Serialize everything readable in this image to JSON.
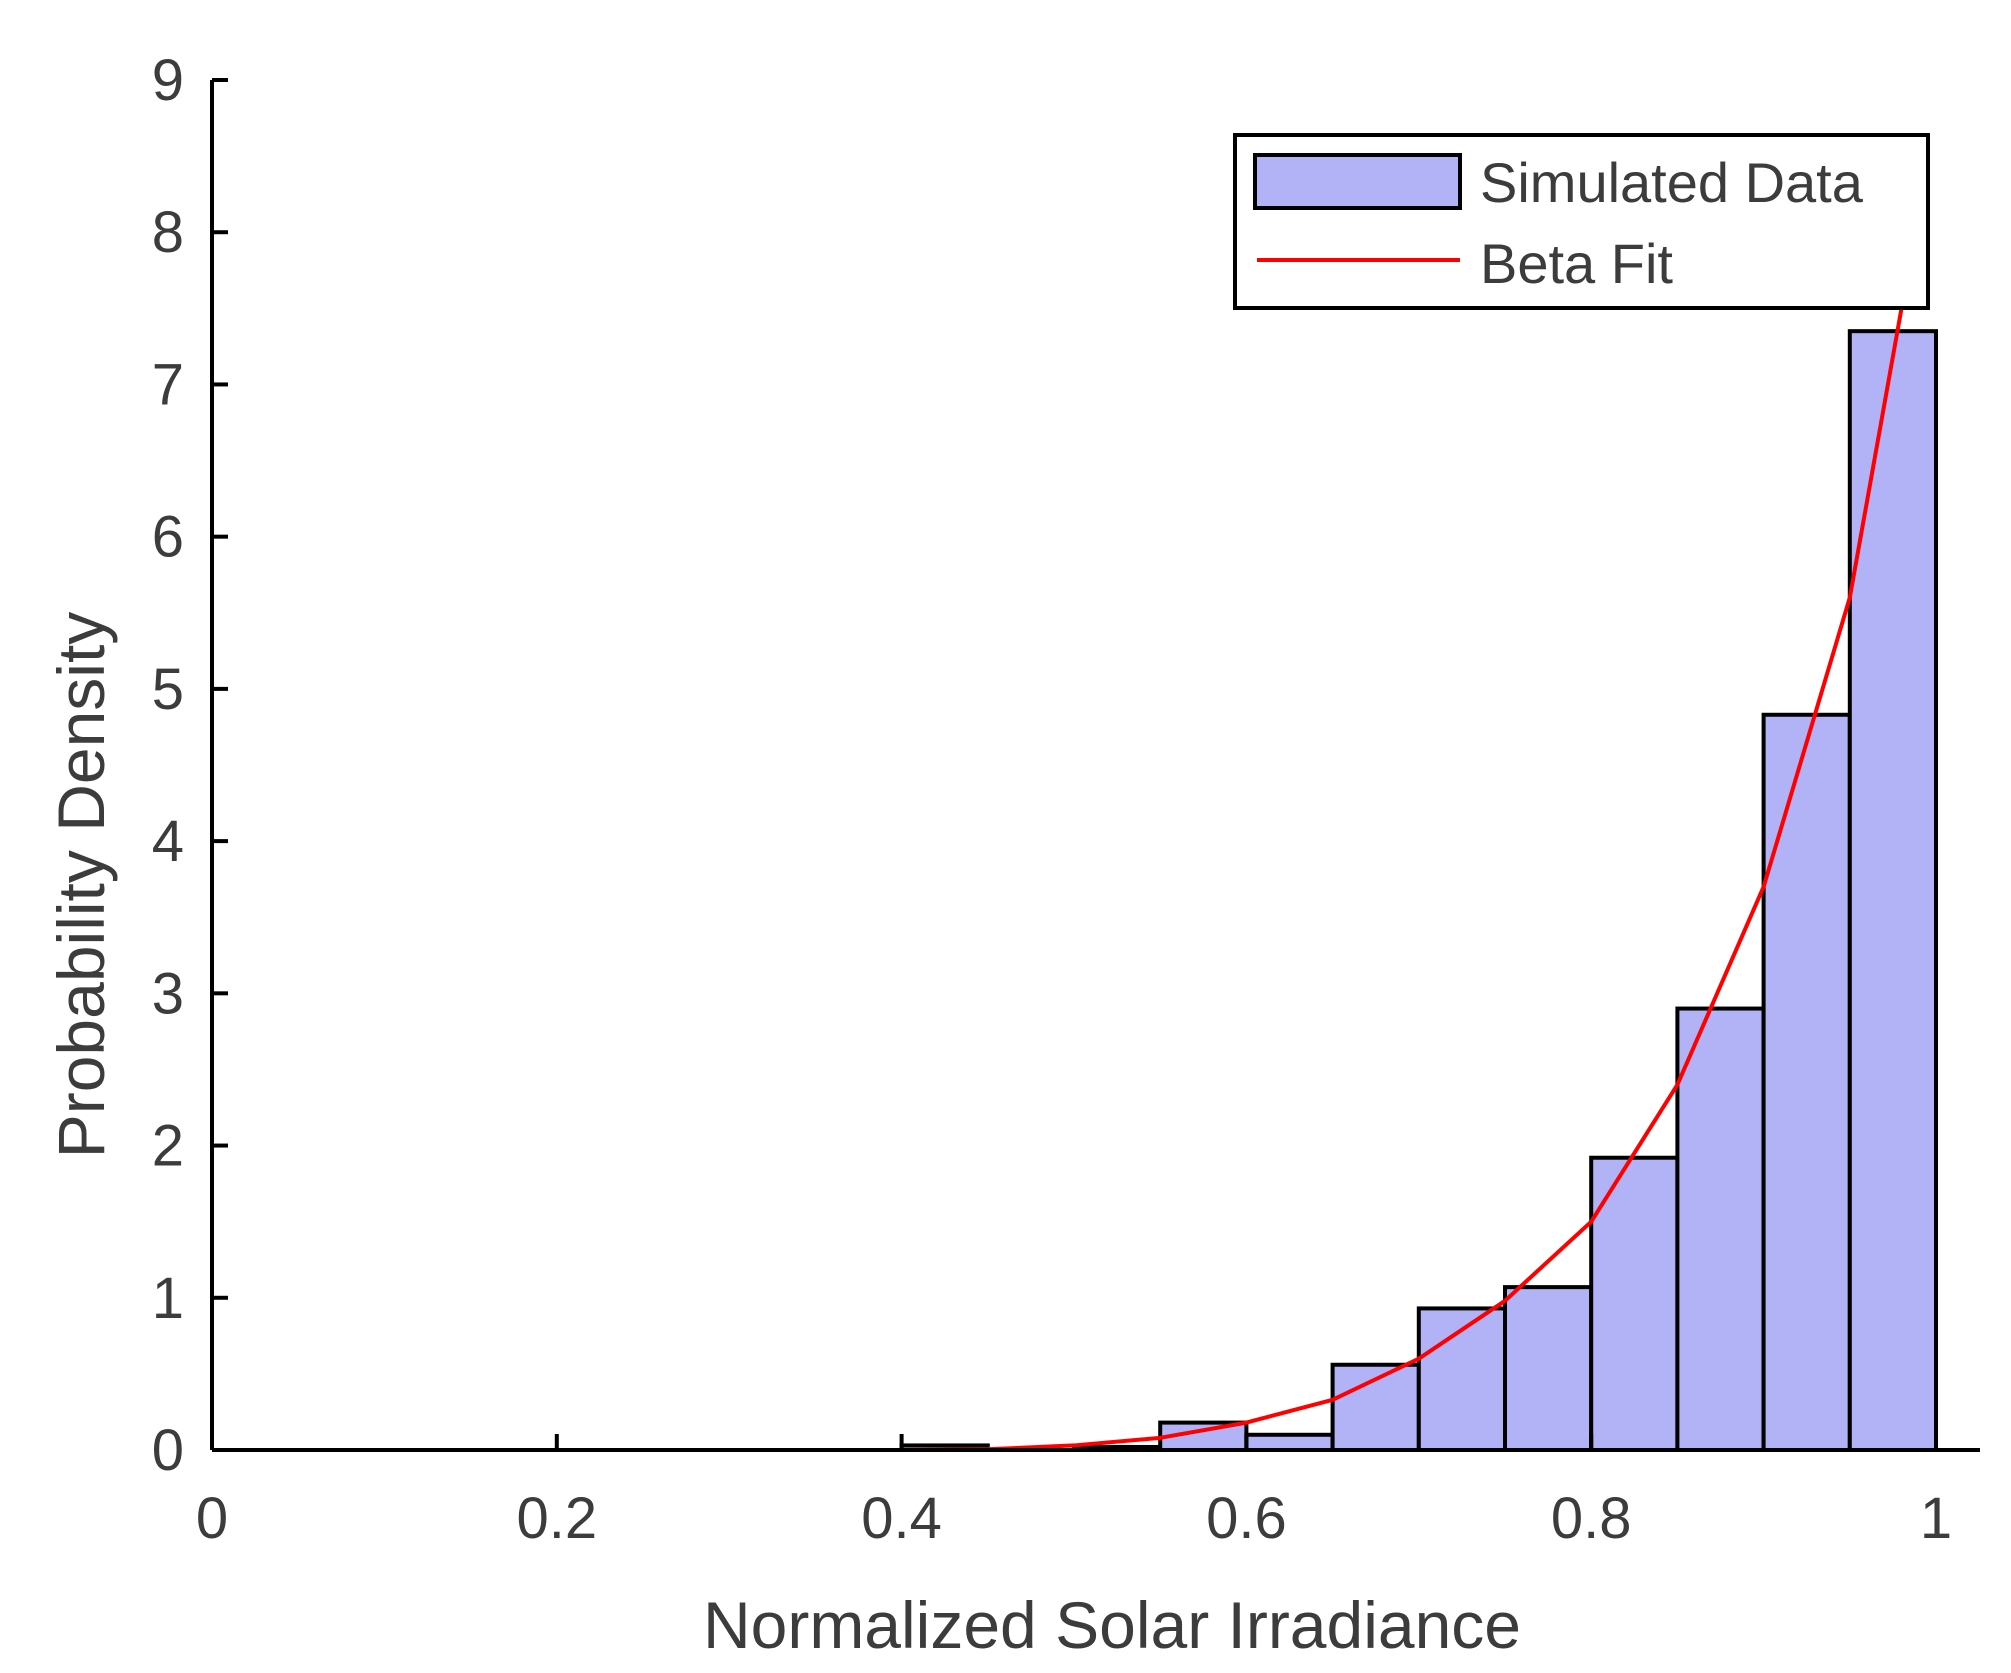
{
  "chart_data": {
    "type": "bar",
    "title": "",
    "xlabel": "Normalized Solar Irradiance",
    "ylabel": "Probability Density",
    "xlim": [
      0,
      1
    ],
    "ylim": [
      0,
      9
    ],
    "xticks": [
      "0",
      "0.2",
      "0.4",
      "0.6",
      "0.8",
      "1"
    ],
    "yticks": [
      "0",
      "1",
      "2",
      "3",
      "4",
      "5",
      "6",
      "7",
      "8",
      "9"
    ],
    "grid": false,
    "legend_position": "top-right",
    "series": [
      {
        "name": "Simulated Data",
        "kind": "histogram",
        "color": "#b2b2f7",
        "edge_color": "#000000",
        "bin_edges": [
          0.4,
          0.45,
          0.5,
          0.55,
          0.6,
          0.65,
          0.7,
          0.75,
          0.8,
          0.85,
          0.9,
          0.95,
          1.0
        ],
        "values": [
          0.03,
          0.0,
          0.02,
          0.18,
          0.1,
          0.56,
          0.93,
          1.07,
          1.92,
          2.9,
          4.83,
          7.35
        ]
      },
      {
        "name": "Beta Fit",
        "kind": "line",
        "color": "#ff0000",
        "x": [
          0,
          0.1,
          0.2,
          0.3,
          0.4,
          0.45,
          0.5,
          0.55,
          0.6,
          0.65,
          0.7,
          0.75,
          0.8,
          0.85,
          0.9,
          0.95,
          0.98
        ],
        "values": [
          0,
          0,
          0,
          0,
          0.0,
          0.005,
          0.03,
          0.08,
          0.18,
          0.33,
          0.6,
          0.98,
          1.5,
          2.4,
          3.7,
          5.6,
          7.5
        ]
      }
    ]
  }
}
